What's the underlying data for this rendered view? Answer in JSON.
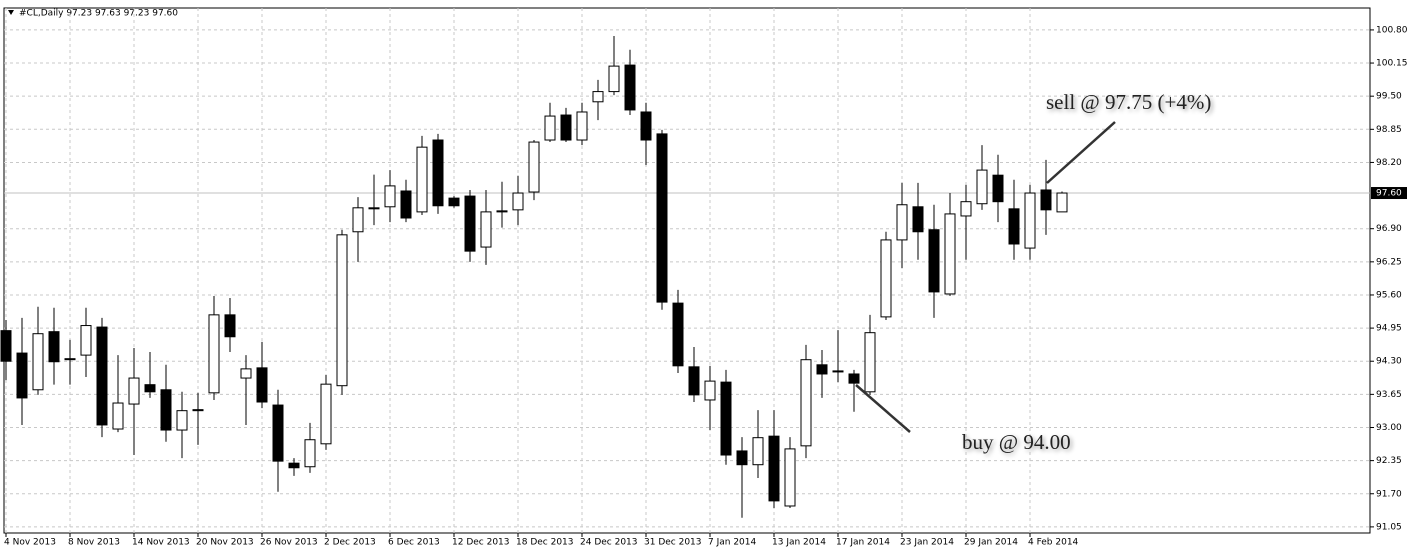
{
  "chart_data": {
    "type": "candlestick",
    "title": "#CL,Daily  97.23 97.63 97.23 97.60",
    "categories": [
      "4 Nov 2013",
      null,
      null,
      null,
      "8 Nov 2013",
      null,
      null,
      null,
      "14 Nov 2013",
      null,
      null,
      null,
      "20 Nov 2013",
      null,
      null,
      null,
      "26 Nov 2013",
      null,
      null,
      null,
      "2 Dec 2013",
      null,
      null,
      null,
      "6 Dec 2013",
      null,
      null,
      null,
      "12 Dec 2013",
      null,
      null,
      null,
      "18 Dec 2013",
      null,
      null,
      null,
      "24 Dec 2013",
      null,
      null,
      null,
      "31 Dec 2013",
      null,
      null,
      null,
      "7 Jan 2014",
      null,
      null,
      null,
      "13 Jan 2014",
      null,
      null,
      null,
      "17 Jan 2014",
      null,
      null,
      null,
      "23 Jan 2014",
      null,
      null,
      null,
      "29 Jan 2014",
      null,
      null,
      null,
      "4 Feb 2014",
      null,
      null
    ],
    "open": [
      94.9,
      94.46,
      93.74,
      94.88,
      94.35,
      94.42,
      94.97,
      92.97,
      93.46,
      93.84,
      93.74,
      92.95,
      93.33,
      93.68,
      95.21,
      93.97,
      94.17,
      93.44,
      92.3,
      92.23,
      92.68,
      93.82,
      96.84,
      97.31,
      97.33,
      97.64,
      97.23,
      98.64,
      97.5,
      97.54,
      96.54,
      97.23,
      97.27,
      97.62,
      98.64,
      99.13,
      98.64,
      99.39,
      99.59,
      100.11,
      99.19,
      98.76,
      95.44,
      94.19,
      93.54,
      93.89,
      92.54,
      92.27,
      92.83,
      91.46,
      92.64,
      94.23,
      94.11,
      94.05,
      93.7,
      95.17,
      96.68,
      97.33,
      96.88,
      95.62,
      97.15,
      97.39,
      97.95,
      97.29,
      96.52,
      97.66,
      97.23
    ],
    "high": [
      95.11,
      95.15,
      95.37,
      95.35,
      94.72,
      95.35,
      95.15,
      94.42,
      94.56,
      94.48,
      94.23,
      93.7,
      93.68,
      95.58,
      95.54,
      94.42,
      94.68,
      93.74,
      92.4,
      93.09,
      94.03,
      96.88,
      97.52,
      97.96,
      98.05,
      97.86,
      98.72,
      98.76,
      97.54,
      97.66,
      97.66,
      97.82,
      97.94,
      98.64,
      99.37,
      99.27,
      99.37,
      99.82,
      100.68,
      100.41,
      99.37,
      98.84,
      95.7,
      94.58,
      94.21,
      94.13,
      92.81,
      93.34,
      93.34,
      92.81,
      94.62,
      94.52,
      94.91,
      94.13,
      95.21,
      96.84,
      97.8,
      97.8,
      97.37,
      97.6,
      97.76,
      98.54,
      98.35,
      97.86,
      97.76,
      98.25,
      97.63
    ],
    "low": [
      93.93,
      93.05,
      93.64,
      93.84,
      93.84,
      93.99,
      92.81,
      92.91,
      92.46,
      93.58,
      92.72,
      92.4,
      92.66,
      93.54,
      94.48,
      93.05,
      93.38,
      91.74,
      92.05,
      92.11,
      92.56,
      93.64,
      96.25,
      96.97,
      97.03,
      97.03,
      97.17,
      97.19,
      97.31,
      96.25,
      96.19,
      96.92,
      96.97,
      97.46,
      98.6,
      98.6,
      98.54,
      99.03,
      99.52,
      99.13,
      98.15,
      95.31,
      94.07,
      93.5,
      92.95,
      92.27,
      91.23,
      92.01,
      91.42,
      91.42,
      92.4,
      93.58,
      93.89,
      93.31,
      93.64,
      95.11,
      96.13,
      96.29,
      95.15,
      95.58,
      96.29,
      97.27,
      97.03,
      96.29,
      96.29,
      96.78,
      97.23
    ],
    "close": [
      94.3,
      93.58,
      94.84,
      94.29,
      94.34,
      95.0,
      93.05,
      93.48,
      93.97,
      93.7,
      92.95,
      93.33,
      93.35,
      95.21,
      94.78,
      94.15,
      93.5,
      92.34,
      92.21,
      92.76,
      93.85,
      96.78,
      97.31,
      97.29,
      97.74,
      97.11,
      98.5,
      97.35,
      97.35,
      96.46,
      97.23,
      97.25,
      97.6,
      98.6,
      99.11,
      98.64,
      99.19,
      99.59,
      100.09,
      99.23,
      98.64,
      95.46,
      94.21,
      93.64,
      93.91,
      92.46,
      92.27,
      92.8,
      91.56,
      92.58,
      94.33,
      94.05,
      94.09,
      93.87,
      94.86,
      96.68,
      97.37,
      96.84,
      95.66,
      97.19,
      97.43,
      98.05,
      97.43,
      96.6,
      97.6,
      97.27,
      97.6
    ],
    "up_color": "#ffffff",
    "down_color": "#000000",
    "ylim": [
      90.93,
      101.23
    ],
    "yticks": [
      {
        "value": 100.8,
        "label": "100.80"
      },
      100.15,
      {
        "value": 99.5,
        "label": "99.50"
      },
      98.85,
      {
        "value": 98.2,
        "label": "98.20"
      },
      {
        "value": 96.9,
        "label": "96.90"
      },
      96.25,
      {
        "value": 95.6,
        "label": "95.60"
      },
      94.95,
      {
        "value": 94.3,
        "label": "94.30"
      },
      93.65,
      {
        "value": 93.0,
        "label": "93.00"
      },
      92.35,
      {
        "value": 91.7,
        "label": "91.70"
      },
      91.05
    ],
    "last_price": {
      "value": 97.6,
      "label": "97.60"
    },
    "grid": true,
    "annotations": [
      "buy @ 94.00",
      "sell @ 97.75 (+4%)"
    ]
  }
}
